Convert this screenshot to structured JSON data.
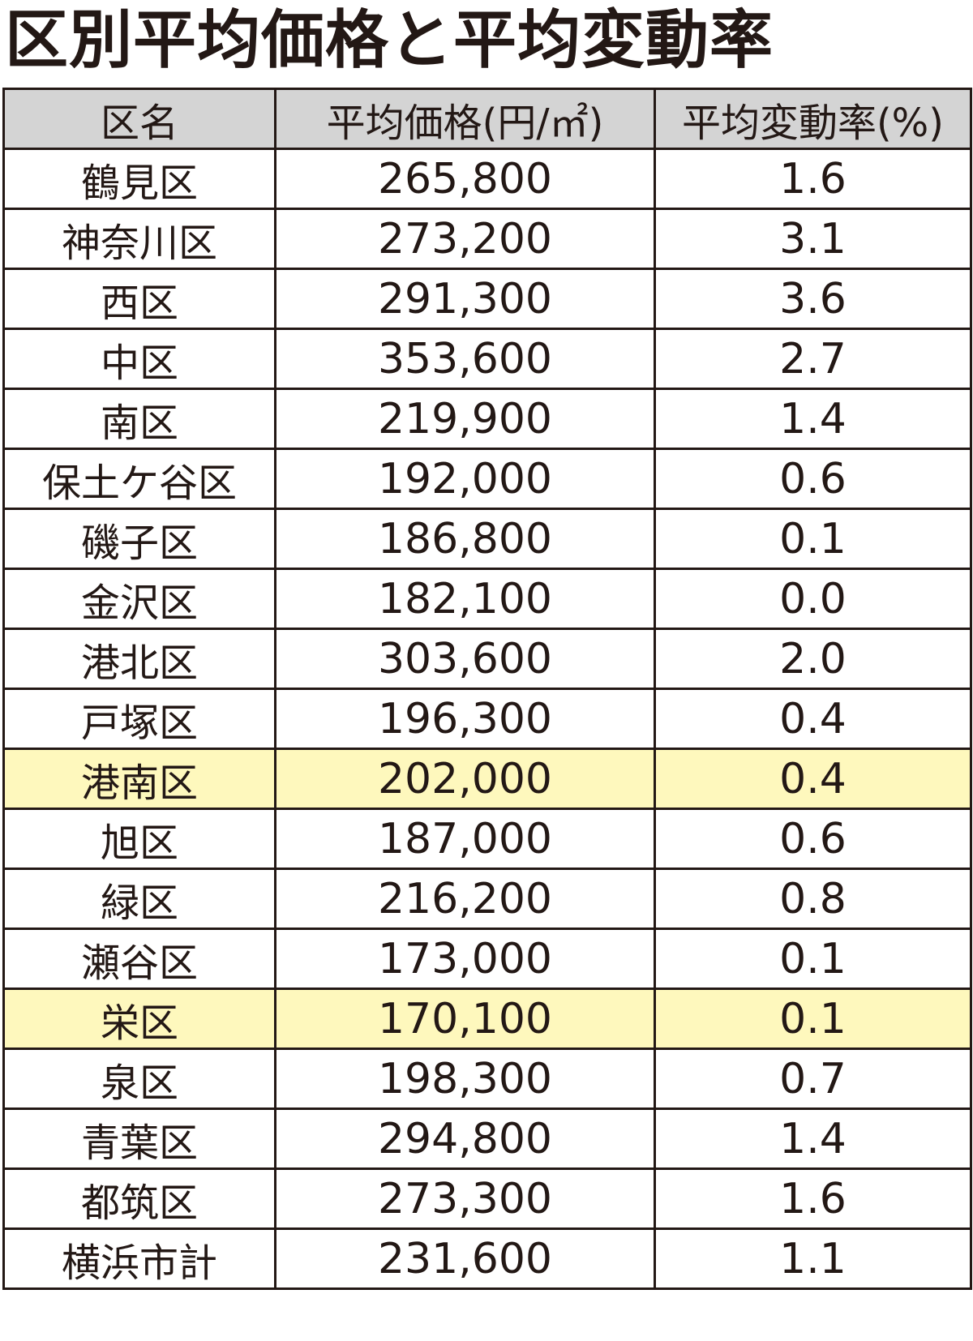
{
  "title": "区別平均価格と平均変動率",
  "colors": {
    "header_background": "#d4d4d4",
    "highlight_background": "#fef8bd",
    "border": "#231815",
    "text": "#231815"
  },
  "chart_data": {
    "type": "table",
    "title": "区別平均価格と平均変動率",
    "columns": [
      "区名",
      "平均価格(円/㎡)",
      "平均変動率(%)"
    ],
    "rows": [
      {
        "ward": "鶴見区",
        "price": "265,800",
        "rate": "1.6",
        "highlighted": false
      },
      {
        "ward": "神奈川区",
        "price": "273,200",
        "rate": "3.1",
        "highlighted": false
      },
      {
        "ward": "西区",
        "price": "291,300",
        "rate": "3.6",
        "highlighted": false
      },
      {
        "ward": "中区",
        "price": "353,600",
        "rate": "2.7",
        "highlighted": false
      },
      {
        "ward": "南区",
        "price": "219,900",
        "rate": "1.4",
        "highlighted": false
      },
      {
        "ward": "保土ケ谷区",
        "price": "192,000",
        "rate": "0.6",
        "highlighted": false
      },
      {
        "ward": "磯子区",
        "price": "186,800",
        "rate": "0.1",
        "highlighted": false
      },
      {
        "ward": "金沢区",
        "price": "182,100",
        "rate": "0.0",
        "highlighted": false
      },
      {
        "ward": "港北区",
        "price": "303,600",
        "rate": "2.0",
        "highlighted": false
      },
      {
        "ward": "戸塚区",
        "price": "196,300",
        "rate": "0.4",
        "highlighted": false
      },
      {
        "ward": "港南区",
        "price": "202,000",
        "rate": "0.4",
        "highlighted": true
      },
      {
        "ward": "旭区",
        "price": "187,000",
        "rate": "0.6",
        "highlighted": false
      },
      {
        "ward": "緑区",
        "price": "216,200",
        "rate": "0.8",
        "highlighted": false
      },
      {
        "ward": "瀬谷区",
        "price": "173,000",
        "rate": "0.1",
        "highlighted": false
      },
      {
        "ward": "栄区",
        "price": "170,100",
        "rate": "0.1",
        "highlighted": true
      },
      {
        "ward": "泉区",
        "price": "198,300",
        "rate": "0.7",
        "highlighted": false
      },
      {
        "ward": "青葉区",
        "price": "294,800",
        "rate": "1.4",
        "highlighted": false
      },
      {
        "ward": "都筑区",
        "price": "273,300",
        "rate": "1.6",
        "highlighted": false
      },
      {
        "ward": "横浜市計",
        "price": "231,600",
        "rate": "1.1",
        "highlighted": false
      }
    ]
  }
}
